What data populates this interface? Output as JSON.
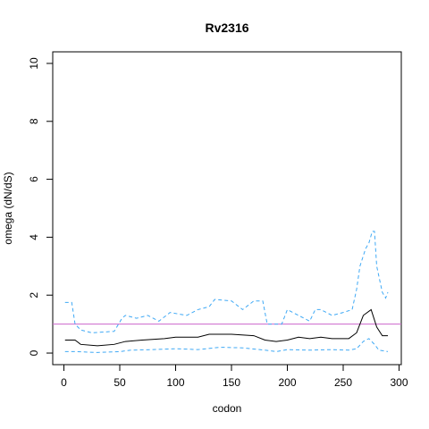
{
  "chart_data": {
    "type": "line",
    "title": "Rv2316",
    "x_label": "codon",
    "y_label": "omega (dN/dS)",
    "xlim": [
      -10,
      302
    ],
    "ylim": [
      -0.4,
      10.4
    ],
    "xticks": [
      0,
      50,
      100,
      150,
      200,
      250,
      300
    ],
    "yticks": [
      0,
      2,
      4,
      6,
      8,
      10
    ],
    "reference_line": {
      "value": 1,
      "color": "#cc66cc"
    },
    "series": [
      {
        "name": "upper",
        "color": "#3fa9f5",
        "dashed": true,
        "x": [
          1,
          7,
          10,
          15,
          25,
          45,
          52,
          55,
          65,
          75,
          85,
          95,
          110,
          120,
          130,
          135,
          150,
          160,
          170,
          178,
          182,
          195,
          200,
          210,
          220,
          225,
          230,
          240,
          250,
          258,
          262,
          265,
          270,
          273,
          276,
          278,
          280,
          285,
          288,
          290
        ],
        "values": [
          1.75,
          1.75,
          1.0,
          0.8,
          0.7,
          0.75,
          1.2,
          1.3,
          1.2,
          1.3,
          1.1,
          1.4,
          1.3,
          1.5,
          1.6,
          1.85,
          1.8,
          1.5,
          1.8,
          1.8,
          1.0,
          1.0,
          1.5,
          1.3,
          1.1,
          1.5,
          1.5,
          1.3,
          1.4,
          1.5,
          2.2,
          3.0,
          3.6,
          3.8,
          4.2,
          4.2,
          3.0,
          2.1,
          1.9,
          2.1
        ]
      },
      {
        "name": "mean",
        "color": "#000000",
        "dashed": false,
        "x": [
          1,
          10,
          15,
          30,
          45,
          55,
          70,
          90,
          100,
          120,
          130,
          150,
          170,
          180,
          190,
          200,
          210,
          220,
          230,
          240,
          255,
          262,
          268,
          275,
          280,
          285,
          290
        ],
        "values": [
          0.45,
          0.45,
          0.3,
          0.25,
          0.3,
          0.4,
          0.45,
          0.5,
          0.55,
          0.55,
          0.65,
          0.65,
          0.6,
          0.45,
          0.4,
          0.45,
          0.55,
          0.5,
          0.55,
          0.5,
          0.5,
          0.7,
          1.3,
          1.5,
          0.9,
          0.6,
          0.6
        ]
      },
      {
        "name": "lower",
        "color": "#3fa9f5",
        "dashed": true,
        "x": [
          1,
          10,
          30,
          50,
          60,
          80,
          100,
          120,
          140,
          160,
          180,
          190,
          200,
          220,
          240,
          255,
          262,
          268,
          273,
          278,
          282,
          290
        ],
        "values": [
          0.05,
          0.05,
          0.02,
          0.05,
          0.1,
          0.12,
          0.15,
          0.12,
          0.2,
          0.18,
          0.1,
          0.05,
          0.12,
          0.1,
          0.12,
          0.1,
          0.15,
          0.4,
          0.5,
          0.3,
          0.1,
          0.05
        ]
      }
    ]
  }
}
